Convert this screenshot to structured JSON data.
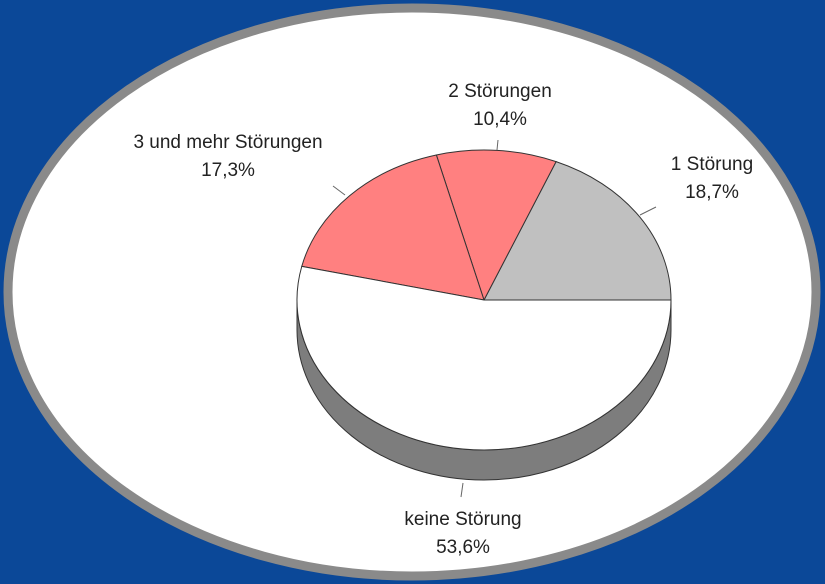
{
  "chart_data": {
    "type": "pie3d",
    "categories": [
      "1 Störung",
      "2 Störungen",
      "3 und mehr Störungen",
      "keine Störung"
    ],
    "values": [
      18.7,
      10.4,
      17.3,
      53.6
    ],
    "value_labels": [
      "18,7%",
      "10,4%",
      "17,3%",
      "53,6%"
    ],
    "colors": [
      "#c0c0c0",
      "#ff8080",
      "#ff8080",
      "#ffffff"
    ]
  }
}
